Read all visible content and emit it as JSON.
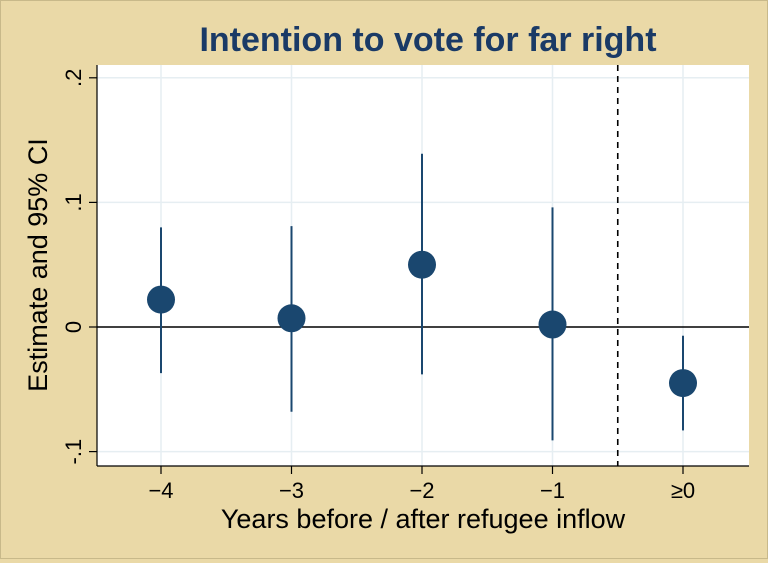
{
  "chart_data": {
    "type": "scatter",
    "title": "Intention to vote for far right",
    "xlabel": "Years before / after refugee inflow",
    "ylabel": "Estimate and 95% CI",
    "categories": [
      "−4",
      "−3",
      "−2",
      "−1",
      "≥0"
    ],
    "y_ticks": [
      {
        "value": -0.1,
        "label": "-.1"
      },
      {
        "value": 0,
        "label": "0"
      },
      {
        "value": 0.1,
        "label": ".1"
      },
      {
        "value": 0.2,
        "label": ".2"
      }
    ],
    "ylim": [
      -0.11,
      0.21
    ],
    "estimates": [
      0.022,
      0.007,
      0.05,
      0.002,
      -0.045
    ],
    "ci_low": [
      -0.037,
      -0.068,
      -0.038,
      -0.091,
      -0.083
    ],
    "ci_high": [
      0.08,
      0.081,
      0.139,
      0.096,
      -0.007
    ],
    "reference_line_y": 0,
    "vertical_dashed_line_between": [
      "−1",
      "≥0"
    ],
    "grid": true,
    "colors": {
      "background": "#ead9a7",
      "plot_background": "#ffffff",
      "marker": "#1a476f",
      "title": "#1a3a66",
      "grid": "#e6eef2"
    }
  }
}
